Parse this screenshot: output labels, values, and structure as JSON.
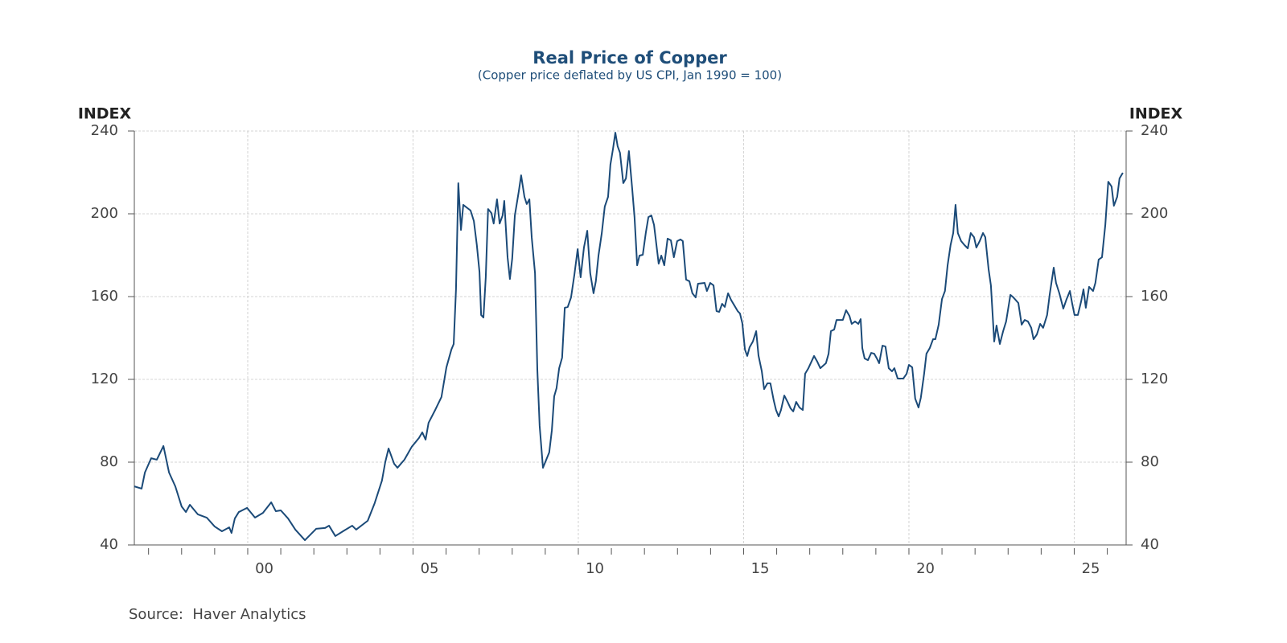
{
  "chart_data": {
    "type": "line",
    "title": "Real Price of Copper",
    "subtitle": "(Copper price deflated by US CPI, Jan 1990 = 100)",
    "y_label": "INDEX",
    "y2_label": "INDEX",
    "source": "Source:  Haver Analytics",
    "color": "#1b4a78",
    "grid": true,
    "xlim": [
      1996.57,
      2026.57
    ],
    "ylim": [
      40,
      240
    ],
    "y2lim": [
      40,
      240
    ],
    "yticks": [
      40,
      80,
      120,
      160,
      200,
      240
    ],
    "y2ticks": [
      40,
      80,
      120,
      160,
      200,
      240
    ],
    "xticks": [
      {
        "value": 2000,
        "label": "00"
      },
      {
        "value": 2005,
        "label": "05"
      },
      {
        "value": 2010,
        "label": "10"
      },
      {
        "value": 2015,
        "label": "15"
      },
      {
        "value": 2020,
        "label": "20"
      },
      {
        "value": 2025,
        "label": "25"
      }
    ],
    "xminor": [
      1997,
      1998,
      1999,
      2000,
      2001,
      2002,
      2003,
      2004,
      2005,
      2006,
      2007,
      2008,
      2009,
      2010,
      2011,
      2012,
      2013,
      2014,
      2015,
      2016,
      2017,
      2018,
      2019,
      2020,
      2021,
      2022,
      2023,
      2024,
      2025,
      2026
    ],
    "x": [
      1996.57,
      1996.79,
      1996.89,
      1997.08,
      1997.25,
      1997.45,
      1997.62,
      1997.81,
      1998.0,
      1998.13,
      1998.25,
      1998.49,
      1998.76,
      1999.0,
      1999.22,
      1999.44,
      1999.51,
      1999.61,
      1999.73,
      1999.98,
      2000.22,
      2000.46,
      2000.71,
      2000.85,
      2001.0,
      2001.22,
      2001.44,
      2001.73,
      2002.07,
      2002.34,
      2002.46,
      2002.65,
      2002.92,
      2003.16,
      2003.28,
      2003.63,
      2003.84,
      2004.06,
      2004.16,
      2004.26,
      2004.43,
      2004.53,
      2004.74,
      2004.96,
      2005.18,
      2005.28,
      2005.38,
      2005.47,
      2005.67,
      2005.86,
      2006.01,
      2006.16,
      2006.23,
      2006.3,
      2006.37,
      2006.45,
      2006.52,
      2006.74,
      2006.84,
      2006.93,
      2007.01,
      2007.06,
      2007.13,
      2007.2,
      2007.27,
      2007.37,
      2007.44,
      2007.54,
      2007.62,
      2007.71,
      2007.76,
      2007.86,
      2007.93,
      2008.0,
      2008.08,
      2008.2,
      2008.27,
      2008.37,
      2008.44,
      2008.52,
      2008.59,
      2008.69,
      2008.76,
      2008.83,
      2008.93,
      2009.12,
      2009.2,
      2009.27,
      2009.34,
      2009.42,
      2009.51,
      2009.59,
      2009.68,
      2009.78,
      2009.88,
      2009.98,
      2010.07,
      2010.17,
      2010.27,
      2010.36,
      2010.46,
      2010.53,
      2010.61,
      2010.71,
      2010.8,
      2010.9,
      2010.97,
      2011.05,
      2011.12,
      2011.19,
      2011.26,
      2011.36,
      2011.44,
      2011.53,
      2011.63,
      2011.7,
      2011.78,
      2011.85,
      2011.95,
      2012.04,
      2012.12,
      2012.21,
      2012.29,
      2012.43,
      2012.51,
      2012.6,
      2012.7,
      2012.8,
      2012.89,
      2012.99,
      2013.09,
      2013.16,
      2013.26,
      2013.36,
      2013.45,
      2013.55,
      2013.62,
      2013.82,
      2013.89,
      2013.99,
      2014.09,
      2014.18,
      2014.26,
      2014.35,
      2014.43,
      2014.53,
      2014.62,
      2014.72,
      2014.82,
      2014.89,
      2014.96,
      2015.04,
      2015.11,
      2015.18,
      2015.28,
      2015.38,
      2015.45,
      2015.55,
      2015.62,
      2015.72,
      2015.81,
      2015.91,
      2015.98,
      2016.06,
      2016.13,
      2016.23,
      2016.33,
      2016.42,
      2016.5,
      2016.59,
      2016.69,
      2016.79,
      2016.86,
      2016.96,
      2017.13,
      2017.23,
      2017.32,
      2017.49,
      2017.57,
      2017.64,
      2017.74,
      2017.81,
      2018.0,
      2018.1,
      2018.2,
      2018.27,
      2018.37,
      2018.47,
      2018.54,
      2018.59,
      2018.66,
      2018.76,
      2018.86,
      2018.95,
      2019.03,
      2019.1,
      2019.2,
      2019.29,
      2019.39,
      2019.49,
      2019.56,
      2019.66,
      2019.83,
      2019.93,
      2020.0,
      2020.1,
      2020.19,
      2020.29,
      2020.36,
      2020.46,
      2020.53,
      2020.63,
      2020.73,
      2020.8,
      2020.9,
      2021.0,
      2021.09,
      2021.17,
      2021.26,
      2021.34,
      2021.41,
      2021.48,
      2021.58,
      2021.68,
      2021.78,
      2021.87,
      2021.97,
      2022.04,
      2022.14,
      2022.24,
      2022.31,
      2022.41,
      2022.48,
      2022.58,
      2022.65,
      2022.75,
      2022.85,
      2022.94,
      2023.07,
      2023.16,
      2023.31,
      2023.41,
      2023.5,
      2023.6,
      2023.7,
      2023.77,
      2023.87,
      2023.97,
      2024.06,
      2024.18,
      2024.26,
      2024.38,
      2024.45,
      2024.55,
      2024.67,
      2024.77,
      2024.87,
      2024.94,
      2025.01,
      2025.11,
      2025.21,
      2025.28,
      2025.35,
      2025.45,
      2025.57,
      2025.64,
      2025.74,
      2025.84,
      2025.94,
      2026.03,
      2026.13,
      2026.2,
      2026.3,
      2026.37,
      2026.47
    ],
    "values": [
      68.3,
      67.2,
      75.0,
      81.9,
      81.2,
      87.8,
      75.0,
      68.3,
      58.6,
      55.9,
      59.4,
      54.8,
      53.2,
      48.9,
      46.6,
      48.5,
      45.8,
      52.8,
      55.9,
      57.9,
      53.2,
      55.5,
      60.6,
      56.3,
      56.7,
      52.8,
      47.4,
      42.3,
      47.8,
      48.2,
      49.3,
      44.3,
      47.0,
      49.3,
      47.4,
      51.7,
      60.2,
      71.1,
      80.0,
      86.6,
      79.2,
      77.3,
      81.2,
      87.4,
      91.7,
      94.4,
      90.9,
      99.0,
      105.2,
      111.5,
      125.8,
      134.4,
      137.1,
      163.5,
      214.8,
      192.2,
      204.3,
      201.6,
      196.5,
      184.9,
      172.0,
      151.1,
      149.9,
      169.3,
      202.3,
      200.4,
      195.3,
      207.0,
      195.3,
      199.2,
      206.2,
      179.0,
      168.5,
      178.3,
      199.2,
      210.9,
      218.6,
      208.2,
      204.7,
      207.0,
      188.7,
      171.3,
      124.7,
      97.5,
      77.3,
      84.7,
      95.5,
      111.8,
      115.7,
      125.4,
      130.5,
      154.6,
      155.0,
      159.6,
      170.5,
      182.9,
      169.3,
      183.7,
      191.8,
      171.3,
      161.6,
      167.4,
      179.8,
      190.7,
      203.5,
      208.2,
      223.7,
      231.5,
      239.2,
      232.6,
      229.5,
      214.8,
      217.1,
      230.3,
      212.0,
      198.4,
      175.1,
      179.8,
      180.2,
      190.7,
      198.4,
      199.2,
      194.6,
      175.9,
      179.8,
      175.1,
      188.0,
      187.2,
      179.0,
      186.8,
      187.6,
      186.8,
      168.2,
      167.4,
      161.6,
      159.6,
      166.2,
      166.6,
      162.7,
      166.6,
      165.4,
      153.0,
      152.6,
      156.5,
      155.0,
      161.6,
      158.4,
      155.7,
      153.0,
      151.8,
      147.2,
      134.4,
      131.3,
      135.5,
      138.3,
      143.3,
      131.5,
      123.9,
      115.3,
      118.1,
      118.1,
      109.9,
      105.2,
      102.1,
      105.2,
      112.2,
      109.1,
      106.0,
      104.5,
      109.1,
      106.4,
      105.2,
      122.7,
      125.4,
      131.3,
      128.5,
      125.4,
      127.8,
      132.4,
      143.3,
      144.1,
      148.7,
      148.7,
      153.4,
      150.7,
      146.8,
      148.0,
      146.8,
      149.1,
      135.1,
      130.1,
      129.3,
      132.8,
      132.4,
      130.1,
      127.8,
      136.3,
      135.9,
      125.4,
      123.9,
      125.4,
      120.4,
      120.4,
      122.7,
      127.0,
      125.8,
      110.7,
      106.4,
      111.1,
      122.7,
      132.4,
      135.1,
      139.4,
      139.4,
      146.4,
      158.8,
      162.7,
      175.1,
      184.9,
      190.7,
      204.3,
      190.7,
      186.8,
      184.9,
      183.3,
      190.7,
      188.7,
      183.7,
      186.8,
      190.7,
      188.7,
      173.2,
      165.4,
      138.3,
      146.0,
      137.1,
      143.3,
      148.0,
      160.8,
      159.6,
      156.9,
      146.4,
      148.7,
      148.0,
      144.9,
      139.4,
      141.7,
      146.8,
      144.9,
      151.1,
      161.2,
      174.0,
      166.6,
      161.6,
      154.2,
      158.8,
      162.7,
      156.5,
      151.1,
      151.1,
      157.7,
      163.5,
      154.6,
      164.7,
      162.7,
      166.6,
      177.9,
      179.0,
      194.6,
      215.5,
      213.2,
      203.9,
      208.2,
      217.1,
      219.8
    ]
  }
}
